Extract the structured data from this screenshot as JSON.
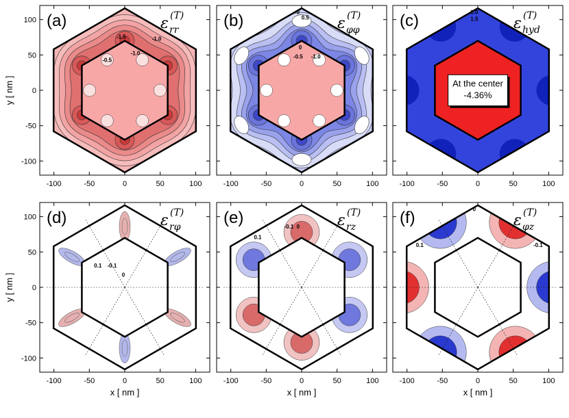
{
  "chart_data": [
    {
      "type": "heatmap",
      "panel": "(a)",
      "component": "rr",
      "row": 0,
      "col": 0,
      "colormap": "red",
      "inner_fill": "#f8a7a7",
      "shell_fill": "#f5b5b5",
      "contour_labels": [
        "-1.5",
        "-1.0",
        "-1.0",
        "-0.5"
      ],
      "xlim": [
        -120,
        120
      ],
      "ylim": [
        -120,
        120
      ],
      "xticks": [
        "-100",
        "-50",
        "0",
        "50",
        "100"
      ],
      "yticks": [
        "100",
        "50",
        "0",
        "-50",
        "-100"
      ],
      "xlabel": "",
      "ylabel": "y [ nm ]"
    },
    {
      "type": "heatmap",
      "panel": "(b)",
      "component": "φφ",
      "row": 0,
      "col": 1,
      "colormap": "blue",
      "inner_fill": "#f8a7a7",
      "shell_fill": "#c9cdf5",
      "contour_labels": [
        "0",
        "0.5",
        "0",
        "-0.5",
        "-1.0"
      ],
      "xlim": [
        -120,
        120
      ],
      "ylim": [
        -120,
        120
      ],
      "xticks": [
        "-100",
        "-50",
        "0",
        "50",
        "100"
      ],
      "yticks": [],
      "xlabel": "",
      "ylabel": ""
    },
    {
      "type": "heatmap",
      "panel": "(c)",
      "component": "hyd",
      "row": 0,
      "col": 2,
      "colormap": "solid",
      "inner_fill": "#ee2222",
      "shell_fill": "#3344dd",
      "contour_labels": [
        "1.0",
        "1.5"
      ],
      "callout": {
        "line1": "At the center",
        "line2": "-4.36%"
      },
      "xlim": [
        -120,
        120
      ],
      "ylim": [
        -120,
        120
      ],
      "xticks": [
        "-100",
        "-50",
        "0",
        "50",
        "100"
      ],
      "yticks": [],
      "xlabel": "",
      "ylabel": ""
    },
    {
      "type": "heatmap",
      "panel": "(d)",
      "component": "rφ",
      "row": 1,
      "col": 0,
      "colormap": "diverging-fine",
      "inner_fill": "#ffffff",
      "shell_fill": "#ffffff",
      "contour_labels": [
        "0.1",
        "-0.1",
        "0"
      ],
      "xlim": [
        -120,
        120
      ],
      "ylim": [
        -120,
        120
      ],
      "xticks": [
        "-100",
        "-50",
        "0",
        "50",
        "100"
      ],
      "yticks": [
        "100",
        "50",
        "0",
        "-50",
        "-100"
      ],
      "xlabel": "x [ nm ]",
      "ylabel": "y [ nm ]"
    },
    {
      "type": "heatmap",
      "panel": "(e)",
      "component": "rz",
      "row": 1,
      "col": 1,
      "colormap": "diverging-lobes",
      "inner_fill": "#ffffff",
      "shell_fill": "#ffffff",
      "contour_labels": [
        "0",
        "-0.1",
        "0.1"
      ],
      "xlim": [
        -120,
        120
      ],
      "ylim": [
        -120,
        120
      ],
      "xticks": [
        "-100",
        "-50",
        "0",
        "50",
        "100"
      ],
      "yticks": [],
      "xlabel": "x [ nm ]",
      "ylabel": ""
    },
    {
      "type": "heatmap",
      "panel": "(f)",
      "component": "φz",
      "row": 1,
      "col": 2,
      "colormap": "diverging-corners",
      "inner_fill": "#ffffff",
      "shell_fill": "#ffffff",
      "contour_labels": [
        "0",
        "0.1",
        "-0.1"
      ],
      "xlim": [
        -120,
        120
      ],
      "ylim": [
        -120,
        120
      ],
      "xticks": [
        "-100",
        "-50",
        "0",
        "50",
        "100"
      ],
      "yticks": [],
      "xlabel": "x [ nm ]",
      "ylabel": ""
    }
  ]
}
